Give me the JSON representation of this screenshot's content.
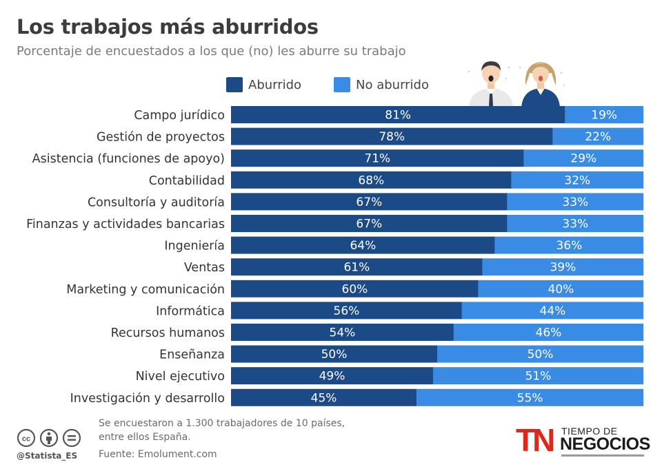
{
  "title": "Los trabajos más aburridos",
  "subtitle": "Porcentaje de encuestados a los que (no) les aburre su trabajo",
  "colors": {
    "aburrido": "#1c4a87",
    "no_aburrido": "#3a8be3",
    "bar_text": "#ffffff",
    "label_text": "#333333"
  },
  "legend": [
    {
      "label": "Aburrido",
      "color": "#1c4a87"
    },
    {
      "label": "No aburrido",
      "color": "#3a8be3"
    }
  ],
  "chart_data": {
    "type": "bar",
    "orientation": "horizontal",
    "stacked": true,
    "title": "Los trabajos más aburridos",
    "subtitle": "Porcentaje de encuestados a los que (no) les aburre su trabajo",
    "categories": [
      "Campo jurídico",
      "Gestión de proyectos",
      "Asistencia (funciones de apoyo)",
      "Contabilidad",
      "Consultoría y auditoría",
      "Finanzas y actividades bancarias",
      "Ingeniería",
      "Ventas",
      "Marketing y comunicación",
      "Informática",
      "Recursos humanos",
      "Enseñanza",
      "Nivel ejecutivo",
      "Investigación y desarrollo"
    ],
    "series": [
      {
        "name": "Aburrido",
        "values": [
          81,
          78,
          71,
          68,
          67,
          67,
          64,
          61,
          60,
          56,
          54,
          50,
          49,
          45
        ]
      },
      {
        "name": "No aburrido",
        "values": [
          19,
          22,
          29,
          32,
          33,
          33,
          36,
          39,
          40,
          44,
          46,
          50,
          51,
          55
        ]
      }
    ],
    "xlim": [
      0,
      100
    ],
    "value_suffix": "%",
    "legend_position": "top"
  },
  "footnote": {
    "line1": "Se encuestaron a 1.300 trabajadores de 10 países,",
    "line2": "entre ellos España."
  },
  "source": "Fuente: Emolument.com",
  "handle": "@Statista_ES",
  "brand": {
    "mark": "TN",
    "line1": "TIEMPO DE",
    "line2": "NEGOCIOS"
  },
  "icons": [
    "cc-icon",
    "by-icon",
    "nd-icon",
    "male-worker-icon",
    "female-worker-icon"
  ]
}
